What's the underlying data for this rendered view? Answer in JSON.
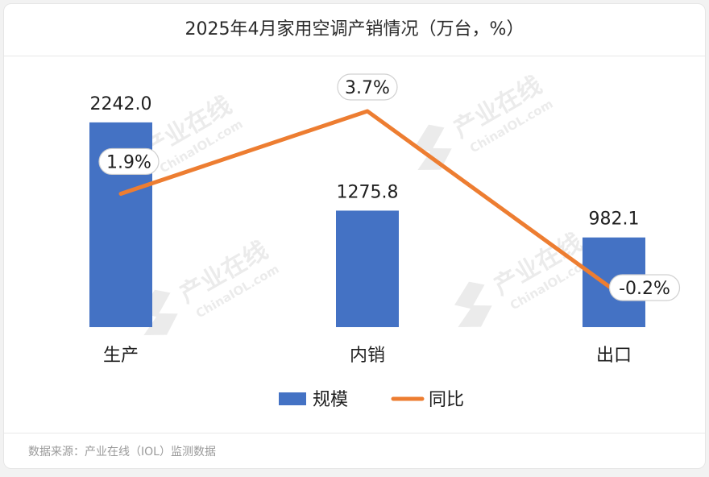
{
  "chart_data": {
    "type": "bar",
    "title": "2025年4月家用空调产销情况（万台，%）",
    "categories": [
      "生产",
      "内销",
      "出口"
    ],
    "series": [
      {
        "name": "规模",
        "kind": "bar",
        "color": "#4472c4",
        "values": [
          2242.0,
          1275.8,
          982.1
        ],
        "labels": [
          "2242.0",
          "1275.8",
          "982.1"
        ]
      },
      {
        "name": "同比",
        "kind": "line",
        "color": "#ed7d31",
        "values": [
          1.9,
          3.7,
          -0.2
        ],
        "labels": [
          "1.9%",
          "3.7%",
          "-0.2%"
        ]
      }
    ],
    "legend_position": "bottom",
    "grid": false
  },
  "watermark": {
    "text_cn": "产业在线",
    "text_en": "ChinaIOL.com"
  },
  "source": "数据来源：产业在线（IOL）监测数据"
}
